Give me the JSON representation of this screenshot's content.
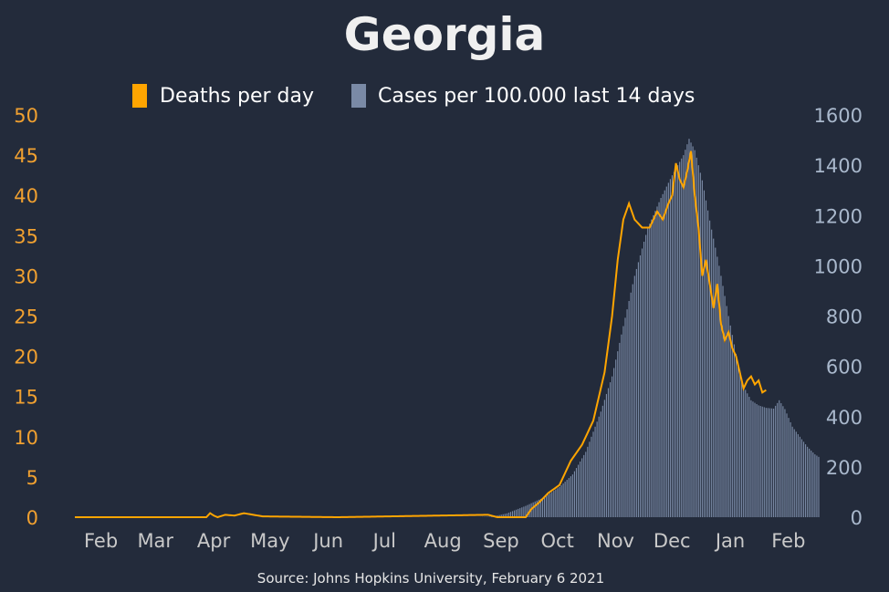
{
  "chart_data": {
    "type": "bar+line",
    "title": "Georgia",
    "source": "Source: Johns Hopkins University, February 6 2021",
    "legend": [
      "Deaths per day",
      "Cases per 100.000 last 14 days"
    ],
    "x_start": "2020-01-22",
    "x_end": "2021-02-05",
    "x_ticks": [
      "Feb",
      "Mar",
      "Apr",
      "May",
      "Jun",
      "Jul",
      "Aug",
      "Sep",
      "Oct",
      "Nov",
      "Dec",
      "Jan",
      "Feb"
    ],
    "x_tick_days": [
      10,
      39,
      70,
      100,
      131,
      161,
      192,
      223,
      253,
      284,
      314,
      345,
      376
    ],
    "y_left": {
      "label": "Deaths per day",
      "range": [
        0,
        50
      ],
      "ticks": [
        "0",
        "5",
        "10",
        "15",
        "20",
        "25",
        "30",
        "35",
        "40",
        "45",
        "50"
      ]
    },
    "y_right": {
      "label": "Cases per 100.000 last 14 days",
      "range": [
        0,
        1600
      ],
      "ticks": [
        "0",
        "200",
        "400",
        "600",
        "800",
        "1000",
        "1200",
        "1400",
        "1600"
      ]
    },
    "cases_anchors": [
      [
        0,
        0
      ],
      [
        215,
        0
      ],
      [
        222,
        2
      ],
      [
        230,
        15
      ],
      [
        240,
        45
      ],
      [
        250,
        80
      ],
      [
        258,
        120
      ],
      [
        265,
        170
      ],
      [
        272,
        260
      ],
      [
        280,
        420
      ],
      [
        286,
        560
      ],
      [
        292,
        760
      ],
      [
        298,
        960
      ],
      [
        305,
        1150
      ],
      [
        312,
        1270
      ],
      [
        318,
        1360
      ],
      [
        324,
        1440
      ],
      [
        327,
        1505
      ],
      [
        330,
        1460
      ],
      [
        334,
        1340
      ],
      [
        338,
        1180
      ],
      [
        343,
        1000
      ],
      [
        348,
        800
      ],
      [
        352,
        650
      ],
      [
        356,
        520
      ],
      [
        360,
        465
      ],
      [
        364,
        445
      ],
      [
        368,
        435
      ],
      [
        372,
        432
      ],
      [
        375,
        465
      ],
      [
        378,
        430
      ],
      [
        382,
        360
      ],
      [
        386,
        320
      ],
      [
        390,
        280
      ],
      [
        394,
        250
      ],
      [
        396,
        240
      ]
    ],
    "deaths_anchors": [
      [
        0,
        0
      ],
      [
        70,
        0
      ],
      [
        72,
        0.5
      ],
      [
        74,
        0.2
      ],
      [
        76,
        0
      ],
      [
        80,
        0.3
      ],
      [
        85,
        0.2
      ],
      [
        90,
        0.5
      ],
      [
        95,
        0.3
      ],
      [
        100,
        0.1
      ],
      [
        140,
        0
      ],
      [
        220,
        0.3
      ],
      [
        225,
        0
      ],
      [
        240,
        0
      ],
      [
        243,
        1
      ],
      [
        247,
        1.8
      ],
      [
        252,
        3
      ],
      [
        258,
        4
      ],
      [
        264,
        7
      ],
      [
        270,
        9
      ],
      [
        276,
        12
      ],
      [
        282,
        18
      ],
      [
        286,
        25
      ],
      [
        289,
        32
      ],
      [
        292,
        37
      ],
      [
        295,
        39
      ],
      [
        298,
        37
      ],
      [
        302,
        36
      ],
      [
        306,
        36
      ],
      [
        310,
        38
      ],
      [
        313,
        37
      ],
      [
        316,
        39
      ],
      [
        318,
        40
      ],
      [
        320,
        44
      ],
      [
        322,
        42
      ],
      [
        324,
        41
      ],
      [
        326,
        43
      ],
      [
        328,
        45.5
      ],
      [
        330,
        40
      ],
      [
        332,
        36
      ],
      [
        334,
        30
      ],
      [
        336,
        32
      ],
      [
        338,
        29
      ],
      [
        340,
        26
      ],
      [
        342,
        29
      ],
      [
        344,
        24
      ],
      [
        346,
        22
      ],
      [
        348,
        23
      ],
      [
        350,
        21
      ],
      [
        352,
        20
      ],
      [
        354,
        18
      ],
      [
        356,
        16
      ],
      [
        358,
        17
      ],
      [
        360,
        17.5
      ],
      [
        362,
        16.5
      ],
      [
        364,
        17
      ],
      [
        366,
        15.5
      ],
      [
        368,
        15.8
      ]
    ]
  }
}
